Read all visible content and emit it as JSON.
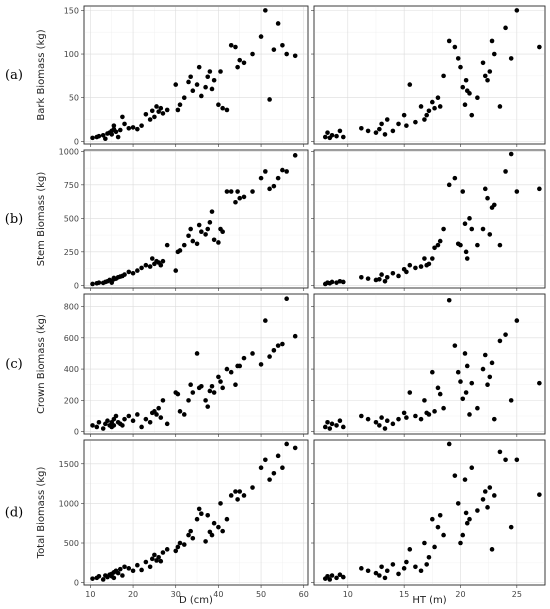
{
  "chart_data": [
    {
      "type": "scatter",
      "row": 0,
      "col": 0,
      "panel_label": "(a)",
      "ylabel": "Bark Biomass (kg)",
      "xlabel": "",
      "xlim": [
        8.5,
        61
      ],
      "ylim": [
        -3,
        155
      ],
      "xticks": [
        10,
        20,
        30,
        40,
        50,
        60
      ],
      "yticks": [
        0,
        50,
        100,
        150
      ],
      "xtick_labels": [
        "",
        "",
        "",
        "",
        "",
        ""
      ],
      "ytick_labels": [
        "0",
        "50",
        "100",
        "150"
      ],
      "x": [
        10.5,
        11.5,
        12,
        13,
        13.5,
        14,
        14.5,
        15,
        15,
        15.5,
        15.5,
        16,
        16.5,
        17,
        17.5,
        18,
        19,
        20,
        21,
        22,
        23,
        24,
        24.5,
        25,
        25.5,
        26,
        26.5,
        27,
        28,
        30,
        30.5,
        31,
        32,
        33,
        33.5,
        34,
        35,
        35.5,
        36,
        37,
        37.5,
        38,
        38.5,
        39,
        40,
        40.5,
        41,
        42,
        43,
        44,
        44.5,
        45,
        46,
        48,
        50,
        51,
        52,
        53,
        54,
        55,
        56,
        58
      ],
      "y": [
        4,
        5,
        6,
        7,
        3,
        9,
        10,
        12,
        8,
        14,
        18,
        11,
        5,
        13,
        28,
        20,
        15,
        16,
        14,
        18,
        31,
        25,
        35,
        28,
        40,
        34,
        38,
        32,
        36,
        65,
        36,
        42,
        50,
        68,
        74,
        58,
        65,
        85,
        52,
        62,
        74,
        80,
        60,
        70,
        42,
        80,
        38,
        36,
        110,
        108,
        85,
        93,
        90,
        100,
        120,
        150,
        48,
        105,
        135,
        110,
        100,
        98
      ]
    },
    {
      "type": "scatter",
      "row": 0,
      "col": 1,
      "panel_label": "",
      "ylabel": "",
      "xlabel": "",
      "xlim": [
        7,
        27.5
      ],
      "ylim": [
        -3,
        155
      ],
      "xticks": [
        10,
        15,
        20,
        25
      ],
      "yticks": [
        0,
        50,
        100,
        150
      ],
      "xtick_labels": [
        "",
        "",
        "",
        ""
      ],
      "ytick_labels": [
        "",
        "",
        "",
        ""
      ],
      "x": [
        8,
        8.2,
        8.4,
        8.6,
        9,
        9.3,
        9.6,
        11.2,
        11.8,
        12.5,
        12.8,
        13,
        13.3,
        13.5,
        14,
        14.5,
        15,
        15.2,
        15.5,
        16,
        16.5,
        16.8,
        17,
        17.2,
        17.5,
        17.7,
        18,
        18.2,
        18.5,
        19,
        19.5,
        19.8,
        20,
        20.2,
        20.4,
        20.5,
        20.6,
        20.8,
        21,
        21.5,
        22,
        22.2,
        22.4,
        22.6,
        22.8,
        23,
        23.5,
        24,
        24.5,
        25,
        27
      ],
      "y": [
        5,
        10,
        4,
        7,
        6,
        12,
        5,
        15,
        12,
        10,
        14,
        20,
        8,
        25,
        12,
        20,
        30,
        18,
        65,
        22,
        40,
        25,
        30,
        35,
        45,
        38,
        50,
        40,
        75,
        115,
        108,
        95,
        85,
        62,
        42,
        70,
        58,
        55,
        30,
        50,
        90,
        75,
        70,
        80,
        115,
        100,
        40,
        130,
        95,
        150,
        108
      ]
    },
    {
      "type": "scatter",
      "row": 1,
      "col": 0,
      "panel_label": "(b)",
      "ylabel": "Stem Biomass (kg)",
      "xlabel": "",
      "xlim": [
        8.5,
        61
      ],
      "ylim": [
        -20,
        1010
      ],
      "xticks": [
        10,
        20,
        30,
        40,
        50,
        60
      ],
      "yticks": [
        0,
        250,
        500,
        750,
        1000
      ],
      "xtick_labels": [
        "",
        "",
        "",
        "",
        "",
        ""
      ],
      "ytick_labels": [
        "0",
        "250",
        "500",
        "750",
        "1000"
      ],
      "x": [
        10.5,
        11.5,
        12,
        13,
        13.5,
        14,
        14.5,
        15,
        15,
        15.5,
        15.5,
        16,
        16.5,
        17,
        17.5,
        18,
        19,
        20,
        21,
        22,
        23,
        24,
        24.5,
        25,
        25.5,
        26,
        26.5,
        27,
        28,
        30,
        30.5,
        31,
        32,
        33,
        33.5,
        34,
        35,
        35.5,
        36,
        37,
        37.5,
        38,
        38.5,
        39,
        40,
        40.5,
        41,
        42,
        43,
        44,
        44.5,
        45,
        46,
        48,
        50,
        51,
        52,
        53,
        54,
        55,
        56,
        58
      ],
      "y": [
        10,
        15,
        20,
        18,
        25,
        30,
        40,
        35,
        20,
        45,
        55,
        50,
        60,
        65,
        70,
        80,
        100,
        90,
        110,
        130,
        150,
        140,
        200,
        160,
        180,
        170,
        150,
        180,
        300,
        110,
        250,
        260,
        300,
        370,
        420,
        330,
        310,
        450,
        400,
        380,
        420,
        470,
        550,
        340,
        320,
        420,
        400,
        700,
        700,
        620,
        700,
        650,
        660,
        700,
        800,
        850,
        720,
        740,
        800,
        860,
        850,
        970
      ]
    },
    {
      "type": "scatter",
      "row": 1,
      "col": 1,
      "panel_label": "",
      "ylabel": "",
      "xlabel": "",
      "xlim": [
        7,
        27.5
      ],
      "ylim": [
        -20,
        1010
      ],
      "xticks": [
        10,
        15,
        20,
        25
      ],
      "yticks": [
        0,
        250,
        500,
        750,
        1000
      ],
      "xtick_labels": [
        "",
        "",
        "",
        ""
      ],
      "ytick_labels": [
        "",
        "",
        "",
        ""
      ],
      "x": [
        8,
        8.2,
        8.4,
        8.6,
        9,
        9.3,
        9.6,
        11.2,
        11.8,
        12.5,
        12.8,
        13,
        13.3,
        13.5,
        14,
        14.5,
        15,
        15.2,
        15.5,
        16,
        16.5,
        16.8,
        17,
        17.2,
        17.5,
        17.7,
        18,
        18.2,
        18.5,
        19,
        19.5,
        19.8,
        20,
        20.2,
        20.4,
        20.5,
        20.6,
        20.8,
        21,
        21.5,
        22,
        22.2,
        22.4,
        22.6,
        22.8,
        23,
        23.5,
        24,
        24.5,
        25,
        27
      ],
      "y": [
        10,
        20,
        15,
        25,
        20,
        30,
        25,
        60,
        50,
        40,
        45,
        80,
        30,
        60,
        90,
        70,
        120,
        100,
        150,
        130,
        140,
        200,
        150,
        160,
        200,
        280,
        300,
        330,
        420,
        750,
        800,
        310,
        300,
        700,
        460,
        250,
        200,
        500,
        420,
        300,
        420,
        720,
        650,
        380,
        580,
        600,
        300,
        850,
        980,
        700,
        720
      ]
    },
    {
      "type": "scatter",
      "row": 2,
      "col": 0,
      "panel_label": "(c)",
      "ylabel": "Crown Biomass (kg)",
      "xlabel": "",
      "xlim": [
        8.5,
        61
      ],
      "ylim": [
        -15,
        880
      ],
      "xticks": [
        10,
        20,
        30,
        40,
        50,
        60
      ],
      "yticks": [
        0,
        200,
        400,
        600,
        800
      ],
      "xtick_labels": [
        "",
        "",
        "",
        "",
        "",
        ""
      ],
      "ytick_labels": [
        "0",
        "200",
        "400",
        "600",
        "800"
      ],
      "x": [
        10.5,
        11.5,
        12,
        13,
        13.5,
        14,
        14.5,
        15,
        15,
        15.5,
        15.5,
        16,
        16.5,
        17,
        17.5,
        18,
        19,
        20,
        21,
        22,
        23,
        24,
        24.5,
        25,
        25.5,
        26,
        26.5,
        27,
        28,
        30,
        30.5,
        31,
        32,
        33,
        33.5,
        34,
        35,
        35.5,
        36,
        37,
        37.5,
        38,
        38.5,
        39,
        40,
        40.5,
        41,
        42,
        43,
        44,
        44.5,
        45,
        46,
        48,
        50,
        51,
        52,
        53,
        54,
        55,
        56,
        58
      ],
      "y": [
        40,
        30,
        60,
        20,
        50,
        70,
        40,
        30,
        60,
        80,
        40,
        100,
        60,
        50,
        40,
        80,
        100,
        70,
        110,
        30,
        80,
        60,
        120,
        130,
        110,
        150,
        90,
        200,
        50,
        250,
        240,
        130,
        110,
        200,
        300,
        250,
        500,
        280,
        290,
        200,
        160,
        260,
        290,
        250,
        350,
        320,
        280,
        400,
        380,
        300,
        420,
        420,
        470,
        500,
        430,
        710,
        480,
        520,
        550,
        560,
        850,
        610
      ]
    },
    {
      "type": "scatter",
      "row": 2,
      "col": 1,
      "panel_label": "",
      "ylabel": "",
      "xlabel": "",
      "xlim": [
        7,
        27.5
      ],
      "ylim": [
        -15,
        880
      ],
      "xticks": [
        10,
        15,
        20,
        25
      ],
      "yticks": [
        0,
        200,
        400,
        600,
        800
      ],
      "xtick_labels": [
        "",
        "",
        "",
        ""
      ],
      "ytick_labels": [
        "",
        "",
        "",
        ""
      ],
      "x": [
        8,
        8.2,
        8.4,
        8.6,
        9,
        9.3,
        9.6,
        11.2,
        11.8,
        12.5,
        12.8,
        13,
        13.3,
        13.5,
        14,
        14.5,
        15,
        15.2,
        15.5,
        16,
        16.5,
        16.8,
        17,
        17.2,
        17.5,
        17.7,
        18,
        18.2,
        18.5,
        19,
        19.5,
        19.8,
        20,
        20.2,
        20.4,
        20.5,
        20.6,
        20.8,
        21,
        21.5,
        22,
        22.2,
        22.4,
        22.6,
        22.8,
        23,
        23.5,
        24,
        24.5,
        25,
        27
      ],
      "y": [
        30,
        60,
        20,
        50,
        40,
        70,
        30,
        100,
        80,
        60,
        40,
        90,
        20,
        70,
        50,
        80,
        120,
        90,
        250,
        100,
        80,
        200,
        120,
        110,
        380,
        130,
        280,
        240,
        150,
        840,
        550,
        380,
        320,
        210,
        500,
        250,
        420,
        110,
        310,
        150,
        400,
        490,
        300,
        350,
        440,
        80,
        580,
        620,
        200,
        710,
        310
      ]
    },
    {
      "type": "scatter",
      "row": 3,
      "col": 0,
      "panel_label": "(d)",
      "ylabel": "Total Biomass (kg)",
      "xlabel": "D (cm)",
      "xlim": [
        8.5,
        61
      ],
      "ylim": [
        -30,
        1800
      ],
      "xticks": [
        10,
        20,
        30,
        40,
        50,
        60
      ],
      "yticks": [
        0,
        500,
        1000,
        1500
      ],
      "xtick_labels": [
        "10",
        "20",
        "30",
        "40",
        "50",
        "60"
      ],
      "ytick_labels": [
        "0",
        "500",
        "1000",
        "1500"
      ],
      "x": [
        10.5,
        11.5,
        12,
        13,
        13.5,
        14,
        14.5,
        15,
        15,
        15.5,
        15.5,
        16,
        16.5,
        17,
        17.5,
        18,
        19,
        20,
        21,
        22,
        23,
        24,
        24.5,
        25,
        25.5,
        26,
        26.5,
        27,
        28,
        30,
        30.5,
        31,
        32,
        33,
        33.5,
        34,
        35,
        35.5,
        36,
        37,
        37.5,
        38,
        38.5,
        39,
        40,
        40.5,
        41,
        42,
        43,
        44,
        44.5,
        45,
        46,
        48,
        50,
        51,
        52,
        53,
        54,
        55,
        56,
        58
      ],
      "y": [
        50,
        60,
        80,
        40,
        90,
        70,
        100,
        80,
        110,
        130,
        60,
        150,
        120,
        170,
        90,
        200,
        180,
        150,
        220,
        160,
        260,
        200,
        300,
        350,
        280,
        320,
        270,
        380,
        420,
        400,
        450,
        500,
        480,
        600,
        650,
        560,
        800,
        930,
        870,
        520,
        850,
        640,
        600,
        750,
        700,
        1000,
        650,
        800,
        1100,
        1150,
        1050,
        1150,
        1100,
        1200,
        1450,
        1550,
        1300,
        1380,
        1600,
        1450,
        1750,
        1700
      ]
    },
    {
      "type": "scatter",
      "row": 3,
      "col": 1,
      "panel_label": "",
      "ylabel": "",
      "xlabel": "HT (m)",
      "xlim": [
        7,
        27.5
      ],
      "ylim": [
        -30,
        1800
      ],
      "xticks": [
        10,
        15,
        20,
        25
      ],
      "yticks": [
        0,
        500,
        1000,
        1500
      ],
      "xtick_labels": [
        "10",
        "15",
        "20",
        "25"
      ],
      "ytick_labels": [
        "",
        "",
        "",
        ""
      ],
      "x": [
        8,
        8.2,
        8.4,
        8.6,
        9,
        9.3,
        9.6,
        11.2,
        11.8,
        12.5,
        12.8,
        13,
        13.3,
        13.5,
        14,
        14.5,
        15,
        15.2,
        15.5,
        16,
        16.5,
        16.8,
        17,
        17.2,
        17.5,
        17.7,
        18,
        18.2,
        18.5,
        19,
        19.5,
        19.8,
        20,
        20.2,
        20.4,
        20.5,
        20.6,
        20.8,
        21,
        21.5,
        22,
        22.2,
        22.4,
        22.6,
        22.8,
        23,
        23.5,
        24,
        24.5,
        25,
        27
      ],
      "y": [
        50,
        80,
        40,
        90,
        60,
        100,
        70,
        180,
        150,
        120,
        90,
        200,
        60,
        150,
        230,
        110,
        180,
        260,
        420,
        200,
        150,
        500,
        230,
        320,
        800,
        450,
        700,
        850,
        600,
        1750,
        1350,
        1000,
        500,
        600,
        1300,
        880,
        750,
        800,
        1450,
        910,
        1050,
        1150,
        950,
        1200,
        420,
        1100,
        1650,
        1550,
        700,
        1550,
        1110
      ]
    }
  ]
}
